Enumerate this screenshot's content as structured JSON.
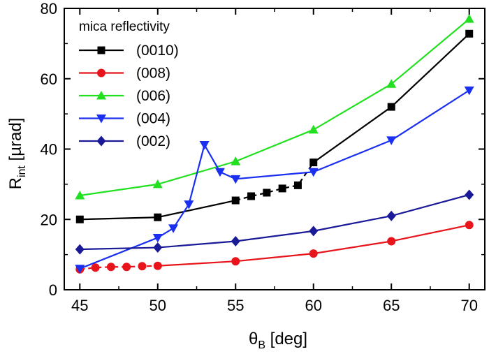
{
  "chart_data": {
    "type": "line",
    "xlabel": "θ_B [deg]",
    "ylabel": "R_int [µrad]",
    "xlim": [
      44,
      71
    ],
    "ylim": [
      0,
      80
    ],
    "xticks": [
      45,
      50,
      55,
      60,
      65,
      70
    ],
    "yticks": [
      0,
      20,
      40,
      60,
      80
    ],
    "legend": {
      "title": "mica reflectivity",
      "position": "top-left"
    },
    "grid": false,
    "series": [
      {
        "name": "(0010)",
        "color": "#000000",
        "marker": "square",
        "points": [
          [
            45,
            20.0
          ],
          [
            50,
            20.6
          ],
          [
            55,
            25.4
          ]
        ],
        "dashed_points": [
          [
            55,
            25.4
          ],
          [
            56,
            26.6
          ],
          [
            57,
            27.6
          ],
          [
            58,
            28.8
          ],
          [
            59,
            29.7
          ],
          [
            60,
            36.2
          ]
        ],
        "tail_points": [
          [
            60,
            36.2
          ],
          [
            65,
            52.0
          ],
          [
            70,
            72.8
          ]
        ]
      },
      {
        "name": "(008)",
        "color": "#e8141b",
        "marker": "circle",
        "dashed_points": [
          [
            45,
            5.8
          ],
          [
            46,
            6.3
          ],
          [
            47,
            6.5
          ],
          [
            48,
            6.5
          ],
          [
            49,
            6.7
          ],
          [
            50,
            6.8
          ]
        ],
        "tail_points": [
          [
            50,
            6.8
          ],
          [
            55,
            8.1
          ],
          [
            60,
            10.3
          ],
          [
            65,
            13.8
          ],
          [
            70,
            18.4
          ]
        ]
      },
      {
        "name": "(006)",
        "color": "#20e020",
        "marker": "triangle-up",
        "points": [
          [
            45,
            26.8
          ],
          [
            50,
            30.0
          ],
          [
            55,
            36.5
          ],
          [
            60,
            45.5
          ],
          [
            65,
            58.5
          ],
          [
            70,
            77.0
          ]
        ]
      },
      {
        "name": "(004)",
        "color": "#1a2ff0",
        "marker": "triangle-down",
        "points": [
          [
            45,
            6.0
          ],
          [
            50,
            14.8
          ],
          [
            51,
            17.5
          ],
          [
            52,
            24.3
          ],
          [
            53,
            41.2
          ],
          [
            54,
            33.5
          ],
          [
            55,
            31.5
          ],
          [
            60,
            33.5
          ],
          [
            65,
            42.5
          ],
          [
            70,
            56.7
          ]
        ]
      },
      {
        "name": "(002)",
        "color": "#1a1a99",
        "marker": "diamond",
        "points": [
          [
            45,
            11.5
          ],
          [
            50,
            12.0
          ],
          [
            55,
            13.8
          ],
          [
            60,
            16.7
          ],
          [
            65,
            21.0
          ],
          [
            70,
            27.0
          ]
        ]
      }
    ]
  },
  "labels": {
    "x_main": "θ",
    "x_sub": "B",
    "x_unit": " [deg]",
    "y_main": "R",
    "y_sub": "int",
    "y_unit": " [µrad]"
  }
}
